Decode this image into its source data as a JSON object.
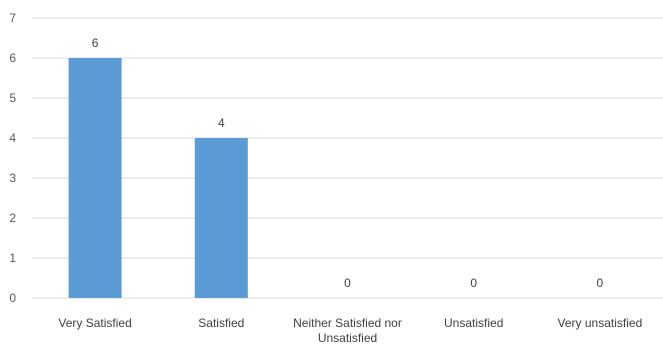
{
  "chart_data": {
    "type": "bar",
    "categories": [
      [
        "Very Satisfied"
      ],
      [
        "Satisfied"
      ],
      [
        "Neither Satisfied nor",
        "Unsatisfied"
      ],
      [
        "Unsatisfied"
      ],
      [
        "Very unsatisfied"
      ]
    ],
    "values": [
      6,
      4,
      0,
      0,
      0
    ],
    "ylim": [
      0,
      7
    ],
    "yticks": [
      0,
      1,
      2,
      3,
      4,
      5,
      6,
      7
    ],
    "grid": true,
    "legend": "none",
    "bar_color": "#5B9BD5",
    "grid_color": "#D9D9D9"
  }
}
